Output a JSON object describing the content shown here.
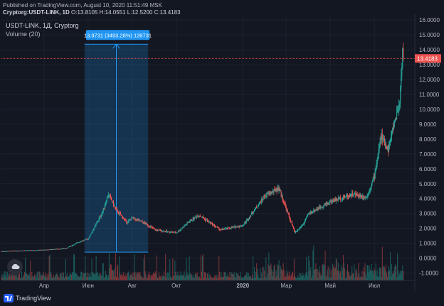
{
  "header": {
    "published": "Published on TradingView.com, August 10, 2020 11:51:49 MSK",
    "symbol_full": "Cryptorg:USDT-LINK, 1D",
    "ohlc_o": "O:13.8105",
    "ohlc_h": "H:14.0551",
    "ohlc_l": "L:12.5200",
    "ohlc_c": "C:13.4183"
  },
  "legend": {
    "symbol": "USDT-LINK, 1Д, Cryptorg",
    "volume": "Volume (20)"
  },
  "measure_label": "13.9731 (3493.28%) 139731",
  "last_price_label": "13.4183",
  "brand": "TradingView",
  "icons": {
    "cloud": "cloud-icon",
    "logo": "tradingview-logo-icon"
  },
  "colors": {
    "background": "#131722",
    "up": "#26a69a",
    "down": "#ef5350",
    "measure": "#2196f3",
    "price_line": "#ef5350"
  },
  "chart_data": {
    "type": "candlestick",
    "title": "USDT-LINK, 1Д, Cryptorg",
    "x_tick_labels": [
      "Апр",
      "Июн",
      "Авг",
      "Окт",
      "2020",
      "Мар",
      "Май",
      "Июл"
    ],
    "y_tick_labels": [
      "-1.0000",
      "0.0000",
      "1.0000",
      "2.0000",
      "3.0000",
      "4.0000",
      "5.0000",
      "6.0000",
      "7.0000",
      "8.0000",
      "9.0000",
      "10.0000",
      "11.0000",
      "12.0000",
      "13.0000",
      "14.0000",
      "15.0000",
      "16.0000"
    ],
    "ylim": [
      -1.5,
      16.2
    ],
    "grid": true,
    "last_price": 13.4183,
    "measure": {
      "from_price": 0.4,
      "to_price": 14.3731,
      "change": 13.9731,
      "percent": 3493.28,
      "ticks": 139731
    },
    "price_path": [
      {
        "x": "2019-02",
        "y": 0.45
      },
      {
        "x": "2019-03",
        "y": 0.5
      },
      {
        "x": "2019-04",
        "y": 0.55
      },
      {
        "x": "2019-05",
        "y": 0.65
      },
      {
        "x": "2019-05-20",
        "y": 1.1
      },
      {
        "x": "2019-06",
        "y": 1.3
      },
      {
        "x": "2019-06-20",
        "y": 3.0
      },
      {
        "x": "2019-06-29",
        "y": 4.3
      },
      {
        "x": "2019-07-10",
        "y": 3.2
      },
      {
        "x": "2019-07-25",
        "y": 2.4
      },
      {
        "x": "2019-08",
        "y": 2.7
      },
      {
        "x": "2019-08-20",
        "y": 2.3
      },
      {
        "x": "2019-09",
        "y": 1.9
      },
      {
        "x": "2019-10",
        "y": 1.7
      },
      {
        "x": "2019-10-20",
        "y": 2.5
      },
      {
        "x": "2019-11",
        "y": 2.9
      },
      {
        "x": "2019-12",
        "y": 1.9
      },
      {
        "x": "2020-01",
        "y": 2.2
      },
      {
        "x": "2020-02",
        "y": 4.2
      },
      {
        "x": "2020-02-20",
        "y": 4.7
      },
      {
        "x": "2020-03",
        "y": 3.3
      },
      {
        "x": "2020-03-13",
        "y": 1.7
      },
      {
        "x": "2020-03-25",
        "y": 2.3
      },
      {
        "x": "2020-04",
        "y": 3.0
      },
      {
        "x": "2020-05",
        "y": 3.8
      },
      {
        "x": "2020-06",
        "y": 4.3
      },
      {
        "x": "2020-06-20",
        "y": 4.1
      },
      {
        "x": "2020-07",
        "y": 5.5
      },
      {
        "x": "2020-07-10",
        "y": 8.2
      },
      {
        "x": "2020-07-20",
        "y": 7.3
      },
      {
        "x": "2020-07-28",
        "y": 9.0
      },
      {
        "x": "2020-08-05",
        "y": 10.5
      },
      {
        "x": "2020-08-09",
        "y": 14.0
      },
      {
        "x": "2020-08-10",
        "y": 13.4183
      }
    ]
  }
}
